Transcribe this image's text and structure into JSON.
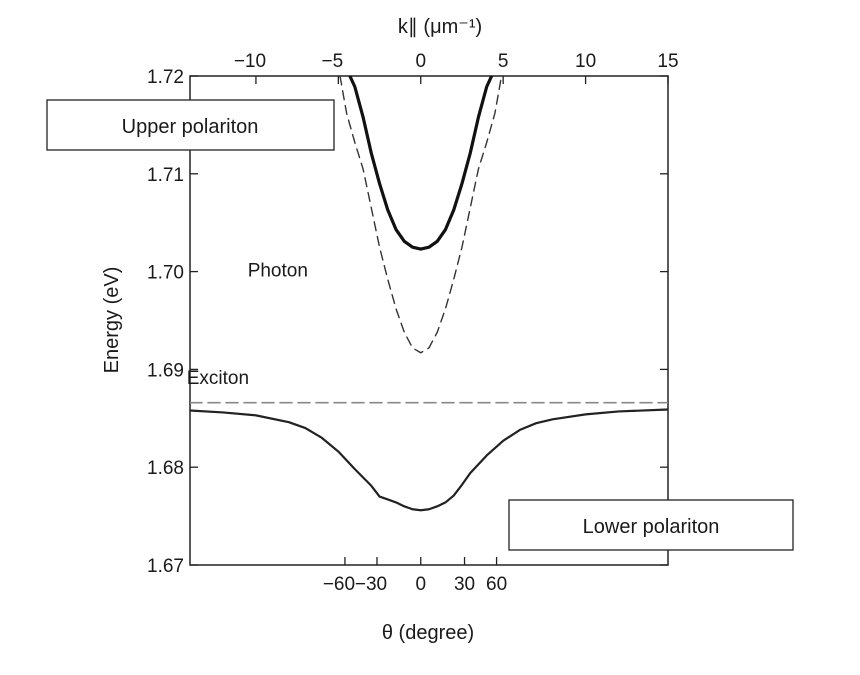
{
  "chart_data": {
    "type": "line",
    "title": "",
    "xlabel": "θ (degree)",
    "xlabel_top": "k∥ (μm⁻¹)",
    "ylabel": "Energy (eV)",
    "ylim": [
      1.67,
      1.72
    ],
    "yticks": [
      "1.67",
      "1.68",
      "1.69",
      "1.70",
      "1.71",
      "1.72"
    ],
    "x_top_lim": [
      -14,
      15
    ],
    "x_top_ticks": [
      "−10",
      "−5",
      "0",
      "5",
      "10",
      "15"
    ],
    "x_bottom_ticks": [
      "−60",
      "−30",
      "0",
      "30",
      "60"
    ],
    "grid": false,
    "series": [
      {
        "name": "Upper polariton",
        "style": "solid-thick",
        "x": [
          -4.3,
          -4.0,
          -3.5,
          -3.0,
          -2.5,
          -2.0,
          -1.5,
          -1.0,
          -0.5,
          0,
          0.5,
          1.0,
          1.5,
          2.0,
          2.5,
          3.0,
          3.5,
          4.0,
          4.3
        ],
        "y": [
          1.72,
          1.7189,
          1.7158,
          1.7121,
          1.709,
          1.7063,
          1.7043,
          1.7031,
          1.7025,
          1.7023,
          1.7025,
          1.7031,
          1.7043,
          1.7063,
          1.709,
          1.7121,
          1.7158,
          1.7189,
          1.72
        ]
      },
      {
        "name": "Photon",
        "style": "dashed",
        "x": [
          -4.9,
          -4.5,
          -4.0,
          -3.5,
          -3.0,
          -2.5,
          -2.0,
          -1.5,
          -1.0,
          -0.5,
          0,
          0.5,
          1.0,
          1.5,
          2.0,
          2.5,
          3.0,
          3.5,
          4.0,
          4.5,
          4.9
        ],
        "y": [
          1.72,
          1.7162,
          1.7132,
          1.7105,
          1.7065,
          1.7025,
          1.6992,
          1.6962,
          1.6938,
          1.6922,
          1.6917,
          1.6922,
          1.6938,
          1.6962,
          1.6992,
          1.7025,
          1.7065,
          1.7105,
          1.7132,
          1.7162,
          1.72
        ]
      },
      {
        "name": "Exciton",
        "style": "dashed-gray",
        "x": [
          -14,
          15
        ],
        "y": [
          1.6866,
          1.6866
        ]
      },
      {
        "name": "Lower polariton",
        "style": "solid",
        "x": [
          -14,
          -12,
          -10,
          -8,
          -7,
          -6,
          -5,
          -4,
          -3,
          -2.5,
          -2,
          -1.5,
          -1,
          -0.5,
          0,
          0.5,
          1,
          1.5,
          2,
          2.5,
          3,
          4,
          5,
          6,
          7,
          8,
          10,
          12,
          15
        ],
        "y": [
          1.6858,
          1.6856,
          1.6853,
          1.6846,
          1.684,
          1.683,
          1.6816,
          1.6798,
          1.6781,
          1.677,
          1.6767,
          1.6764,
          1.676,
          1.6757,
          1.6756,
          1.6757,
          1.676,
          1.6764,
          1.6771,
          1.6782,
          1.6794,
          1.6812,
          1.6827,
          1.6838,
          1.6845,
          1.6849,
          1.6854,
          1.6857,
          1.6859
        ]
      }
    ],
    "annotations": [
      {
        "text": "Photon",
        "x": -10.5,
        "y": 1.6995
      },
      {
        "text": "Exciton",
        "x": -14.2,
        "y": 1.6885
      }
    ],
    "boxes": [
      {
        "text": "Upper polariton",
        "position": "top-left"
      },
      {
        "text": "Lower polariton",
        "position": "bottom-right"
      }
    ]
  }
}
